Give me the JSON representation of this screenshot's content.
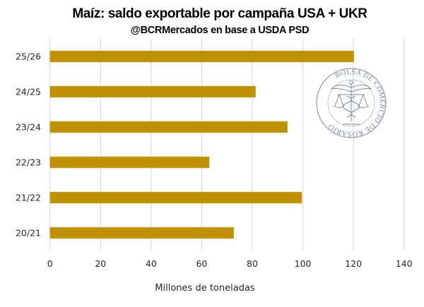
{
  "chart_data": {
    "type": "bar",
    "orientation": "horizontal",
    "title": "Maíz: saldo exportable por campaña USA + UKR",
    "subtitle": "@BCRMercados en base a USDA PSD",
    "categories": [
      "25/26",
      "24/25",
      "23/24",
      "22/23",
      "21/22",
      "20/21"
    ],
    "series": [
      {
        "name": "Saldo exportable USA + UKR",
        "values": [
          120.2,
          81.3,
          93.9,
          63.0,
          99.6,
          72.7
        ],
        "color": "#BF9000"
      }
    ],
    "xlabel": "Millones de toneladas",
    "ylabel": "",
    "xlim": [
      0,
      140
    ],
    "xticks": [
      0,
      20,
      40,
      60,
      80,
      100,
      120,
      140
    ],
    "grid": "vertical",
    "gridline_color": "#D9D9D9",
    "legend": "none",
    "watermark": {
      "text": "BOLSA DE COMERCIO DE ROSARIO",
      "icon": "caduceus-scales-seal-icon",
      "color": "#6F7F8F"
    }
  }
}
